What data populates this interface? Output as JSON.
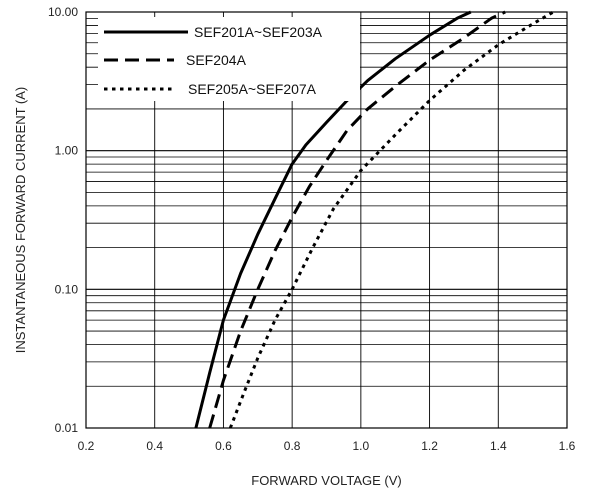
{
  "chart_data": {
    "type": "line",
    "title": "",
    "xlabel": "FORWARD VOLTAGE (V)",
    "ylabel": "INSTANTANEOUS FORWARD CURRENT (A)",
    "xlim": [
      0.2,
      1.6
    ],
    "ylim": [
      0.01,
      10.0
    ],
    "yscale": "log",
    "grid": true,
    "legend_position": "top-left",
    "x_ticks": [
      "0.2",
      "0.4",
      "0.6",
      "0.8",
      "1.0",
      "1.2",
      "1.4",
      "1.6"
    ],
    "y_ticks": [
      "0.01",
      "0.10",
      "1.00",
      "10.00"
    ],
    "series": [
      {
        "name": "SEF201A~SEF203A",
        "style": "solid",
        "x": [
          0.52,
          0.56,
          0.6,
          0.65,
          0.7,
          0.75,
          0.8,
          0.84,
          0.9,
          0.96,
          1.02,
          1.1,
          1.2,
          1.28,
          1.32
        ],
        "y": [
          0.01,
          0.025,
          0.06,
          0.13,
          0.25,
          0.45,
          0.8,
          1.1,
          1.6,
          2.3,
          3.2,
          4.6,
          6.8,
          9.0,
          10.0
        ]
      },
      {
        "name": "SEF204A",
        "style": "dashed",
        "x": [
          0.56,
          0.6,
          0.65,
          0.7,
          0.75,
          0.8,
          0.85,
          0.9,
          0.96,
          1.02,
          1.1,
          1.2,
          1.3,
          1.38,
          1.42
        ],
        "y": [
          0.01,
          0.022,
          0.05,
          0.1,
          0.19,
          0.33,
          0.55,
          0.85,
          1.4,
          2.0,
          2.9,
          4.5,
          6.5,
          9.0,
          10.0
        ]
      },
      {
        "name": "SEF205A~SEF207A",
        "style": "dotted",
        "x": [
          0.62,
          0.66,
          0.7,
          0.75,
          0.8,
          0.86,
          0.92,
          1.0,
          1.1,
          1.2,
          1.3,
          1.4,
          1.5,
          1.56
        ],
        "y": [
          0.01,
          0.018,
          0.032,
          0.06,
          0.1,
          0.2,
          0.38,
          0.72,
          1.3,
          2.3,
          3.8,
          5.8,
          8.2,
          10.0
        ]
      }
    ]
  }
}
